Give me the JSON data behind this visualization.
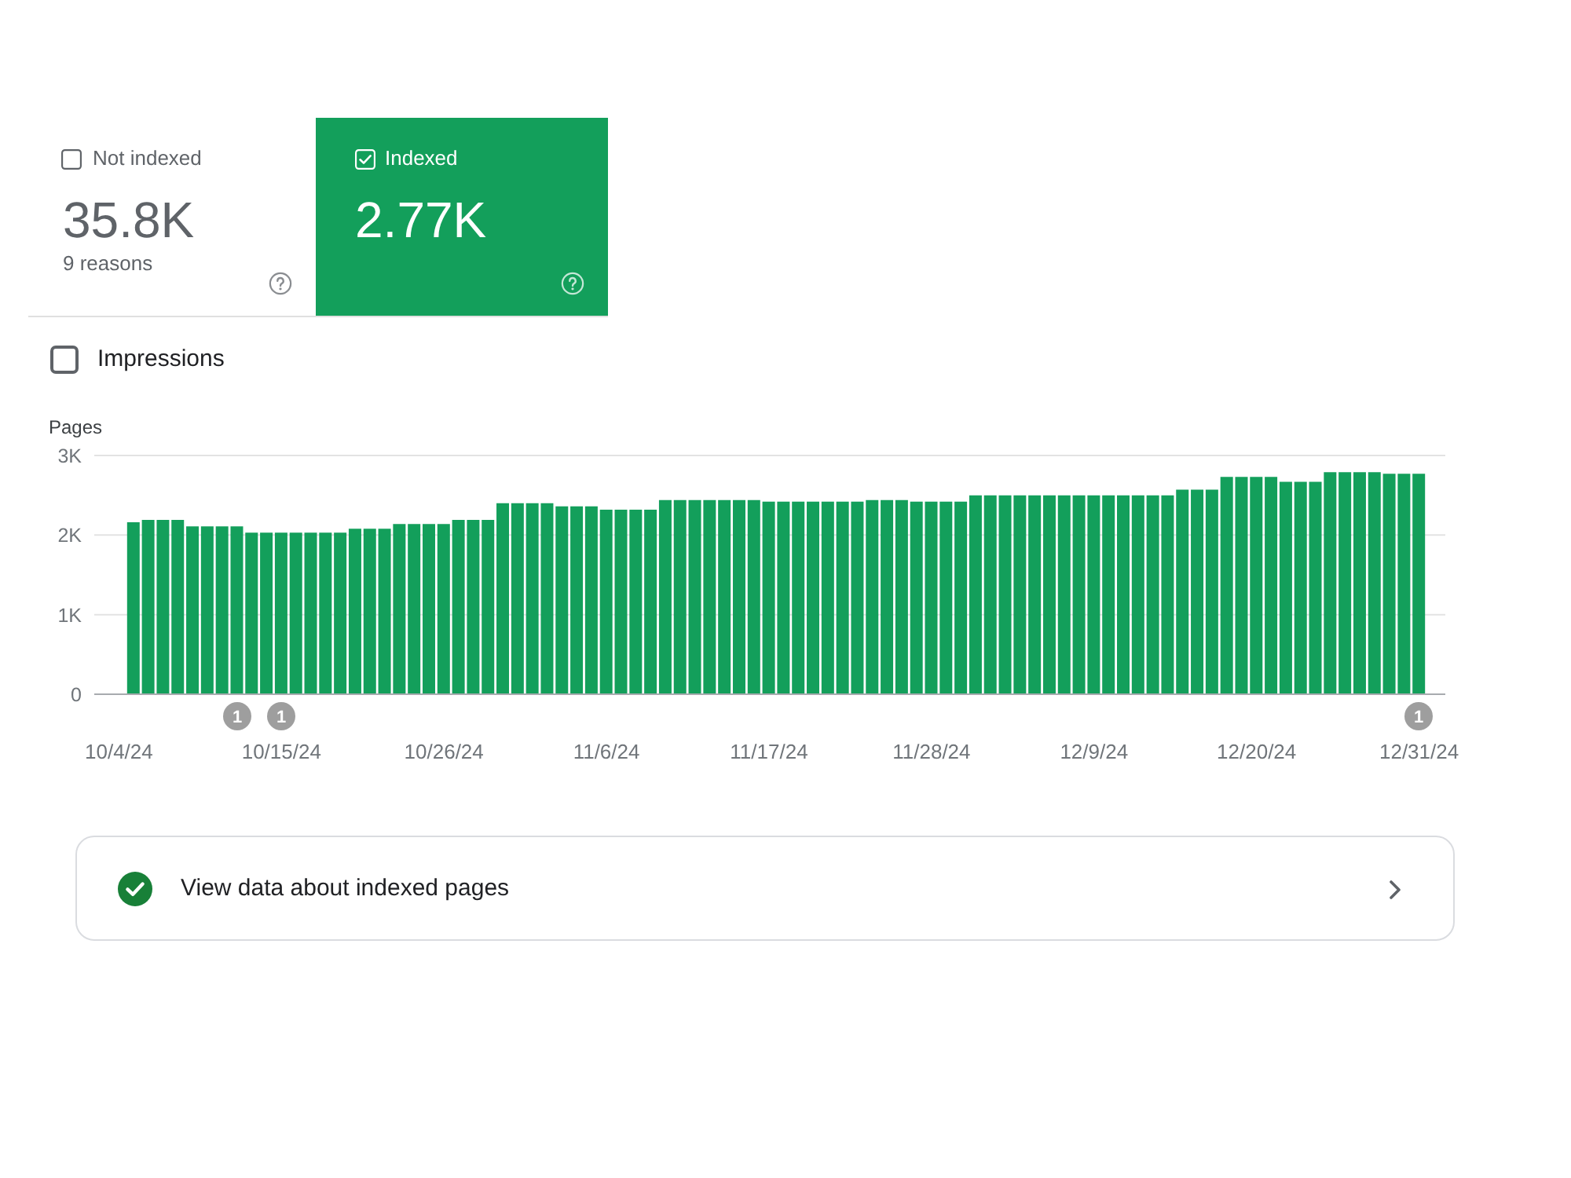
{
  "chart_data": [
    {
      "type": "other",
      "annotations": [
        "Not indexed",
        "35.8K",
        "9 reasons",
        "Indexed",
        "2.77K",
        "Impressions"
      ]
    },
    {
      "type": "bar",
      "ylabel": "Pages",
      "color": "#139f5b",
      "categories": [
        "10/4/24",
        null,
        null,
        null,
        null,
        null,
        null,
        null,
        null,
        null,
        null,
        "10/15/24",
        null,
        null,
        null,
        null,
        null,
        null,
        null,
        null,
        null,
        null,
        "10/26/24",
        null,
        null,
        null,
        null,
        null,
        null,
        null,
        null,
        null,
        null,
        "11/6/24",
        null,
        null,
        null,
        null,
        null,
        null,
        null,
        null,
        null,
        null,
        "11/17/24",
        null,
        null,
        null,
        null,
        null,
        null,
        null,
        null,
        null,
        null,
        "11/28/24",
        null,
        null,
        null,
        null,
        null,
        null,
        null,
        null,
        null,
        null,
        "12/9/24",
        null,
        null,
        null,
        null,
        null,
        null,
        null,
        null,
        null,
        null,
        "12/20/24",
        null,
        null,
        null,
        null,
        null,
        null,
        null,
        null,
        null,
        null,
        "12/31/24"
      ],
      "values": [
        null,
        2160,
        2190,
        2190,
        2190,
        2110,
        2110,
        2110,
        2110,
        2030,
        2030,
        2030,
        2030,
        2030,
        2030,
        2030,
        2080,
        2080,
        2080,
        2140,
        2140,
        2140,
        2140,
        2190,
        2190,
        2190,
        2400,
        2400,
        2400,
        2400,
        2360,
        2360,
        2360,
        2320,
        2320,
        2320,
        2320,
        2440,
        2440,
        2440,
        2440,
        2440,
        2440,
        2440,
        2420,
        2420,
        2420,
        2420,
        2420,
        2420,
        2420,
        2440,
        2440,
        2440,
        2420,
        2420,
        2420,
        2420,
        2500,
        2500,
        2500,
        2500,
        2500,
        2500,
        2500,
        2500,
        2500,
        2500,
        2500,
        2500,
        2500,
        2500,
        2570,
        2570,
        2570,
        2730,
        2730,
        2730,
        2730,
        2670,
        2670,
        2670,
        2790,
        2790,
        2790,
        2790,
        2770,
        2770,
        2770
      ],
      "ylim": [
        0,
        3000
      ],
      "yticks": [
        0,
        {
          "value": 1000,
          "label": "1K"
        },
        {
          "value": 2000,
          "label": "2K"
        },
        {
          "value": 3000,
          "label": "3K"
        }
      ],
      "grid": "y",
      "annotations": [
        "1",
        "1",
        "1",
        "View data about indexed pages"
      ]
    }
  ]
}
